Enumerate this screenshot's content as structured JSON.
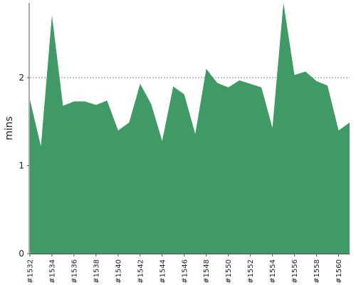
{
  "chart_data": {
    "type": "area",
    "title": "",
    "xlabel": "",
    "ylabel": "mins",
    "ylim": [
      0,
      2.85
    ],
    "y_ticks": [
      0,
      1,
      2
    ],
    "grid": "horizontal-dotted",
    "color": "#3f9a66",
    "x": [
      "#1532",
      "#1533",
      "#1534",
      "#1535",
      "#1536",
      "#1537",
      "#1538",
      "#1539",
      "#1540",
      "#1541",
      "#1542",
      "#1543",
      "#1544",
      "#1545",
      "#1546",
      "#1547",
      "#1548",
      "#1549",
      "#1550",
      "#1551",
      "#1552",
      "#1553",
      "#1554",
      "#1555",
      "#1556",
      "#1557",
      "#1558",
      "#1559",
      "#1560",
      "#1561"
    ],
    "x_tick_labels": [
      "#1532",
      "#1534",
      "#1536",
      "#1538",
      "#1540",
      "#1542",
      "#1544",
      "#1546",
      "#1548",
      "#1550",
      "#1552",
      "#1554",
      "#1556",
      "#1558",
      "#1560"
    ],
    "values": [
      1.75,
      1.22,
      2.71,
      1.68,
      1.73,
      1.73,
      1.69,
      1.74,
      1.4,
      1.49,
      1.93,
      1.7,
      1.28,
      1.9,
      1.81,
      1.36,
      2.1,
      1.94,
      1.89,
      1.97,
      1.93,
      1.89,
      1.43,
      2.88,
      2.03,
      2.07,
      1.96,
      1.91,
      1.4,
      1.49
    ]
  }
}
